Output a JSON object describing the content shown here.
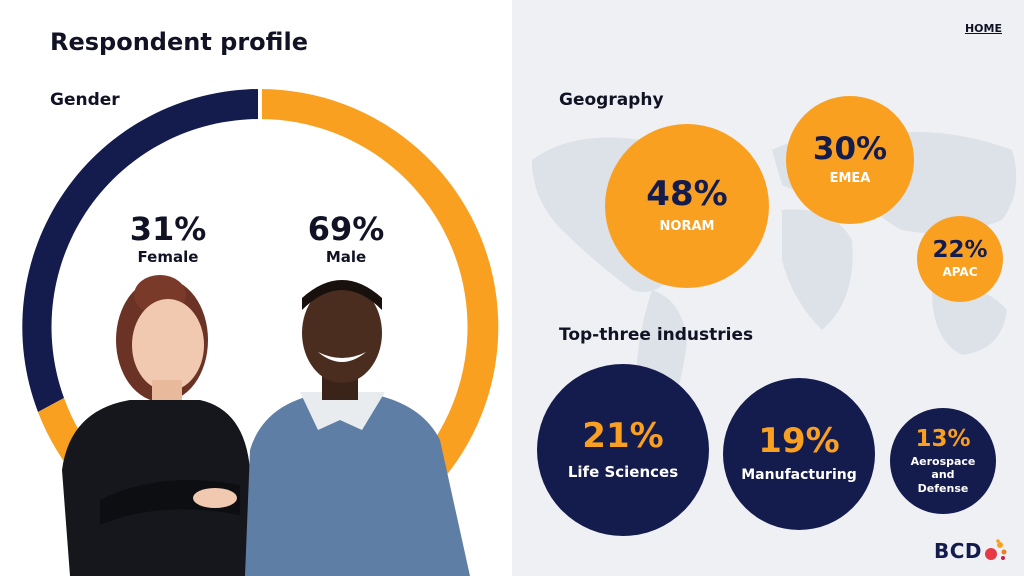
{
  "page": {
    "title": "Respondent profile",
    "home_link": "HOME",
    "logo_text": "BCD"
  },
  "gender": {
    "label": "Gender",
    "items": [
      {
        "pct": "31%",
        "label": "Female",
        "value": 31,
        "color": "#141b4d"
      },
      {
        "pct": "69%",
        "label": "Male",
        "value": 69,
        "color": "#f9a021"
      }
    ]
  },
  "geography": {
    "label": "Geography",
    "items": [
      {
        "pct": "48%",
        "label": "NORAM"
      },
      {
        "pct": "30%",
        "label": "EMEA"
      },
      {
        "pct": "22%",
        "label": "APAC"
      }
    ]
  },
  "industries": {
    "label": "Top-three industries",
    "items": [
      {
        "pct": "21%",
        "label": "Life Sciences"
      },
      {
        "pct": "19%",
        "label": "Manufacturing"
      },
      {
        "pct": "13%",
        "label": "Aerospace and Defense"
      }
    ]
  },
  "colors": {
    "navy": "#141b4d",
    "orange": "#f9a021",
    "right_panel": "#eef0f4",
    "logo_dots": [
      "#e63946",
      "#f9a021",
      "#c81d4a"
    ]
  },
  "icons": {
    "map": "world-map-illustration",
    "people": "respondent-photos"
  }
}
